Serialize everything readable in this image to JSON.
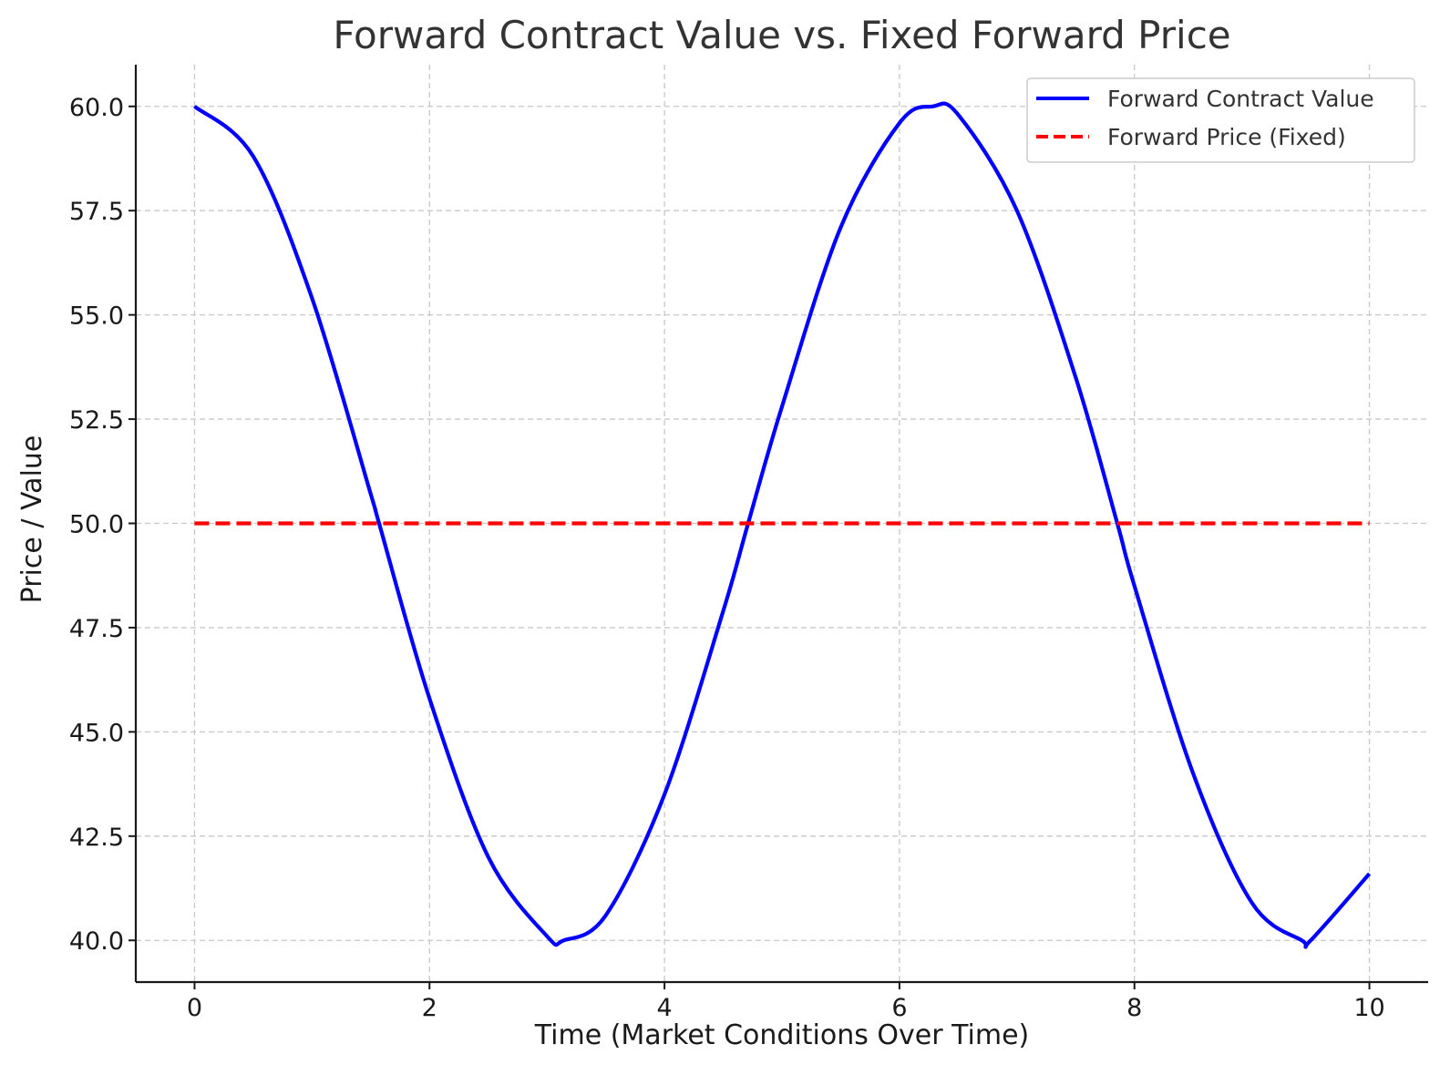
{
  "chart_data": {
    "type": "line",
    "title": "Forward Contract Value vs. Fixed Forward Price",
    "xlabel": "Time (Market Conditions Over Time)",
    "ylabel": "Price / Value",
    "xlim": [
      -0.5,
      10.5
    ],
    "ylim": [
      39,
      61
    ],
    "x_ticks": [
      0,
      2,
      4,
      6,
      8,
      10
    ],
    "y_ticks": [
      40.0,
      42.5,
      45.0,
      47.5,
      50.0,
      52.5,
      55.0,
      57.5,
      60.0
    ],
    "x_tick_labels": [
      "0",
      "2",
      "4",
      "6",
      "8",
      "10"
    ],
    "y_tick_labels": [
      "40.0",
      "42.5",
      "45.0",
      "47.5",
      "50.0",
      "52.5",
      "55.0",
      "57.5",
      "60.0"
    ],
    "grid": true,
    "legend_position": "top-right",
    "series": [
      {
        "name": "Forward Contract Value",
        "color": "#0000ff",
        "style": "solid",
        "x": [
          0,
          0.5,
          1,
          1.5,
          1.571,
          2,
          2.5,
          3,
          3.142,
          3.5,
          4,
          4.5,
          4.712,
          5,
          5.5,
          6,
          6.283,
          6.5,
          7,
          7.5,
          7.854,
          8,
          8.5,
          9,
          9.425,
          9.5,
          10
        ],
        "y": [
          60.0,
          58.8,
          55.4,
          50.7,
          50.0,
          45.8,
          42.0,
          40.1,
          40.0,
          40.6,
          43.5,
          47.9,
          50.0,
          52.8,
          57.1,
          59.6,
          60.0,
          59.8,
          57.5,
          53.5,
          50.0,
          48.5,
          44.0,
          40.9,
          40.0,
          40.0,
          41.6
        ]
      },
      {
        "name": "Forward Price (Fixed)",
        "color": "#ff0000",
        "style": "dashed",
        "x": [
          0,
          10
        ],
        "y": [
          50,
          50
        ]
      }
    ]
  }
}
